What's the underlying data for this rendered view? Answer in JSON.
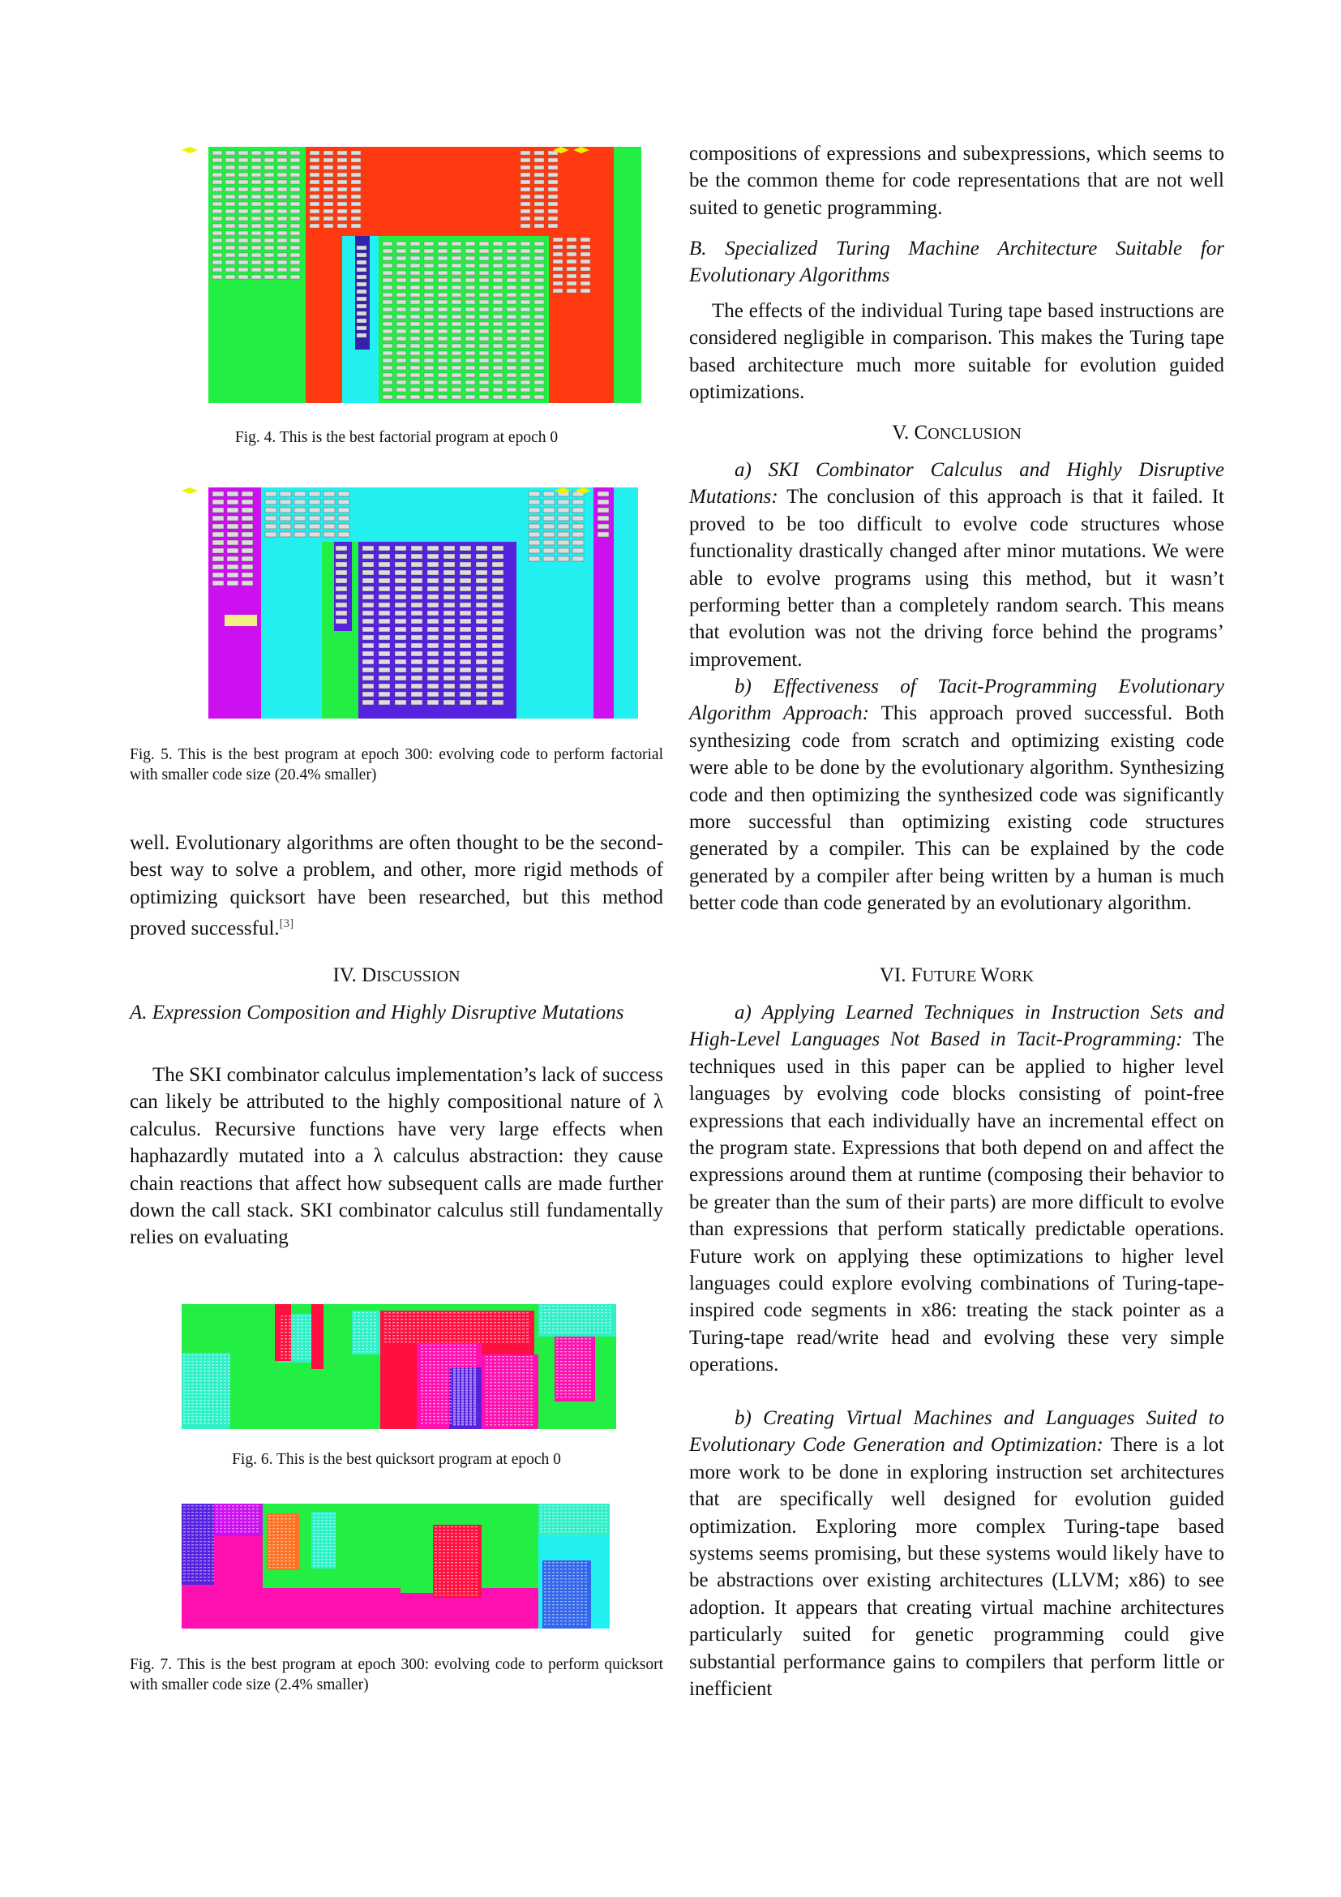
{
  "left": {
    "fig4_caption": "Fig. 4.  This is the best factorial program at epoch 0",
    "fig5_caption": "Fig. 5.  This is the best program at epoch 300: evolving code to perform factorial with smaller code size (20.4% smaller)",
    "para_well": "well. Evolutionary algorithms are often thought to be the second-best way to solve a problem, and other, more rigid methods of optimizing quicksort have been researched, but this method proved successful.",
    "para_well_cite": "[3]",
    "sec4_num": "IV. ",
    "sec4_first": "D",
    "sec4_rest": "ISCUSSION",
    "subA": "A. Expression Composition and Highly Disruptive Mutations",
    "paraA": "The SKI combinator calculus implementation’s lack of success can likely be attributed to the highly compositional nature of λ calculus. Recursive functions have very large effects when haphazardly mutated into a λ calculus abstraction: they cause chain reactions that affect how subsequent calls are made further down the call stack. SKI combinator calculus still fundamentally relies on evaluating",
    "fig6_caption": "Fig. 6.  This is the best quicksort program at epoch 0",
    "fig7_caption": "Fig. 7.  This is the best program at epoch 300: evolving code to perform quicksort with smaller code size (2.4% smaller)"
  },
  "right": {
    "para_cont": "compositions of expressions and subexpressions, which seems to be the common theme for code representations that are not well suited to genetic programming.",
    "subB": "B. Specialized Turing Machine Architecture Suitable for Evolutionary Algorithms",
    "paraB": "The effects of the individual Turing tape based instructions are considered negligible in comparison. This makes the Turing tape based architecture much more suitable for evolution guided optimizations.",
    "sec5_num": "V. ",
    "sec5_first": "C",
    "sec5_rest": "ONCLUSION",
    "concl_a_head": "a) SKI Combinator Calculus and Highly Disruptive Mutations:",
    "concl_a_body": "The conclusion of this approach is that it failed. It proved to be too difficult to evolve code structures whose functionality drastically changed after minor mutations. We were able to evolve programs using this method, but it wasn’t performing better than a completely random search. This means that evolution was not the driving force behind the programs’ improvement.",
    "concl_b_head": "b) Effectiveness of Tacit-Programming Evolutionary Algorithm Approach:",
    "concl_b_body": "This approach proved successful. Both synthesizing code from scratch and optimizing existing code were able to be done by the evolutionary algorithm. Synthesizing code and then optimizing the synthesized code was significantly more successful than optimizing existing code structures generated by a compiler. This can be explained by the code generated by a compiler after being written by a human is much better code than code generated by an evolutionary algorithm.",
    "sec6_num": "VI. ",
    "sec6_first1": "F",
    "sec6_rest1": "UTURE ",
    "sec6_first2": "W",
    "sec6_rest2": "ORK",
    "fw_a_head": "a) Applying Learned Techniques in Instruction Sets and High-Level Languages Not Based in Tacit-Programming:",
    "fw_a_body": "The techniques used in this paper can be applied to higher level languages by evolving code blocks consisting of point-free expressions that each individually have an incremental effect on the program state. Expressions that both depend on and affect the expressions around them at runtime (composing their behavior to be greater than the sum of their parts) are more difficult to evolve than expressions that perform statically predictable operations. Future work on applying these optimizations to higher level languages could explore evolving combinations of Turing-tape-inspired code segments in x86: treating the stack pointer as a Turing-tape read/write head and evolving these very simple operations.",
    "fw_b_head": "b) Creating Virtual Machines and Languages Suited to Evolutionary Code Generation and Optimization:",
    "fw_b_body": "There is a lot more work to be done in exploring instruction set architectures that are specifically well designed for evolution guided optimization. Exploring more complex Turing-tape based systems seems promising, but these systems would likely have to be abstractions over existing architectures (LLVM; x86) to see adoption. It appears that creating virtual machine architectures particularly suited for genetic programming could give substantial performance gains to compilers that perform little or inefficient"
  },
  "colors": {
    "green": "#22ee44",
    "red": "#ff3a10",
    "cyan": "#22f0f0",
    "navy": "#3322aa",
    "magenta": "#cc10f0",
    "purple": "#5522dd",
    "crimson": "#ff1040",
    "pink": "#ff10b0",
    "teal": "#30f0c8",
    "yellow": "#f0f000",
    "orange": "#ff7020"
  }
}
